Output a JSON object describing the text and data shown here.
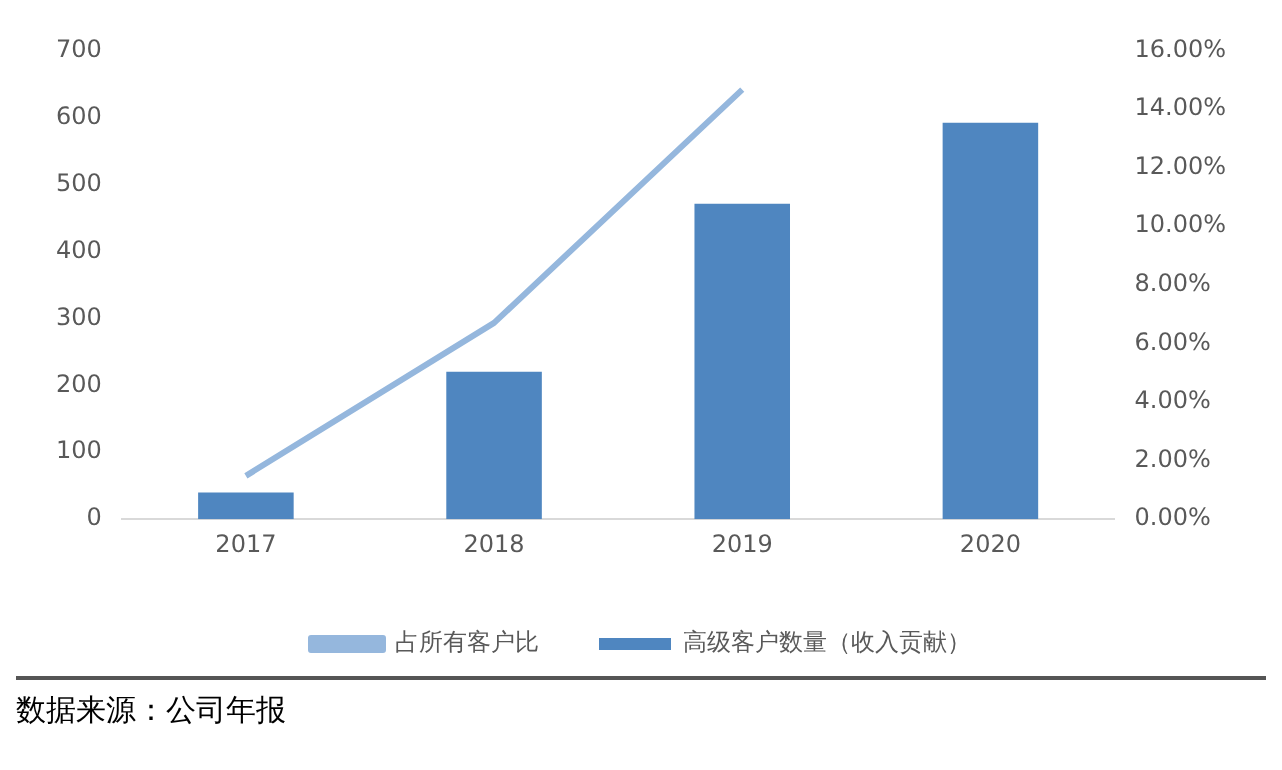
{
  "chart_data": {
    "type": "bar",
    "categories": [
      "2017",
      "2018",
      "2019",
      "2020"
    ],
    "series": [
      {
        "name": "高级客户数量（收入贡献）",
        "color": "#4f86c0",
        "values": [
          40,
          220,
          471,
          592
        ]
      },
      {
        "name": "占所有客户比",
        "type": "line",
        "axis": "y2",
        "color": "#95b7dd",
        "values": [
          1.48,
          6.7,
          14.66,
          null
        ]
      }
    ],
    "ylim": [
      0,
      700
    ],
    "yticks": [
      0,
      100,
      200,
      300,
      400,
      500,
      600,
      700
    ],
    "y2lim": [
      0,
      16
    ],
    "y2ticks": [
      {
        "value": 0,
        "label": "0.00%"
      },
      {
        "value": 2,
        "label": "2.00%"
      },
      {
        "value": 4,
        "label": "4.00%"
      },
      {
        "value": 6,
        "label": "6.00%"
      },
      {
        "value": 8,
        "label": "8.00%"
      },
      {
        "value": 10,
        "label": "10.00%"
      },
      {
        "value": 12,
        "label": "12.00%"
      },
      {
        "value": 14,
        "label": "14.00%"
      },
      {
        "value": 16,
        "label": "16.00%"
      }
    ],
    "grid": false,
    "legend": "bottom",
    "marker": "none",
    "annotations": [
      "数据来源：公司年报"
    ]
  }
}
